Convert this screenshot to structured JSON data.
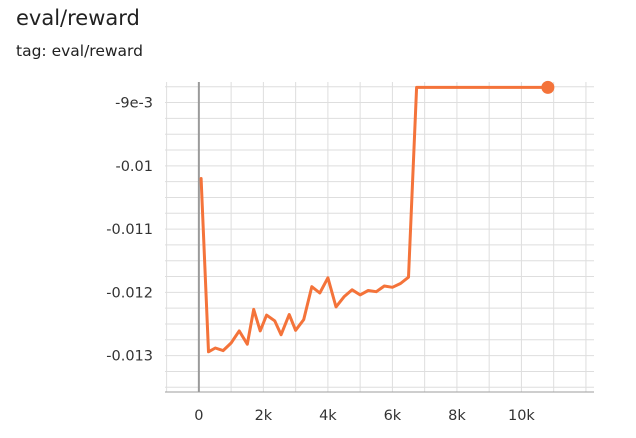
{
  "header": {
    "title": "eval/reward",
    "tag": "tag: eval/reward"
  },
  "chart_data": {
    "type": "line",
    "title": "eval/reward",
    "subtitle": "tag: eval/reward",
    "xlabel": "",
    "ylabel": "",
    "xlim": [
      -1050,
      12250
    ],
    "ylim": [
      -0.013575,
      -0.008675
    ],
    "x_ticks": [
      0,
      2000,
      4000,
      6000,
      8000,
      10000
    ],
    "x_tick_labels": [
      "0",
      "2k",
      "4k",
      "6k",
      "8k",
      "10k"
    ],
    "y_ticks": [
      -0.009,
      -0.01,
      -0.011,
      -0.012,
      -0.013
    ],
    "y_tick_labels": [
      "-9e-3",
      "-0.01",
      "-0.011",
      "-0.012",
      "-0.013"
    ],
    "grid": true,
    "color": "#f4733a",
    "series": [
      {
        "name": "",
        "x": [
          70,
          300,
          510,
          750,
          1000,
          1250,
          1500,
          1700,
          1900,
          2100,
          2350,
          2550,
          2800,
          3000,
          3250,
          3500,
          3750,
          4000,
          4250,
          4500,
          4750,
          5000,
          5250,
          5500,
          5750,
          6000,
          6250,
          6500,
          6750,
          7000,
          7250,
          7500,
          8000,
          9000,
          10000,
          10820
        ],
        "y": [
          -0.0102,
          -0.01294,
          -0.01288,
          -0.01292,
          -0.0128,
          -0.01261,
          -0.01282,
          -0.01227,
          -0.01261,
          -0.01236,
          -0.01245,
          -0.01267,
          -0.01235,
          -0.0126,
          -0.01243,
          -0.01191,
          -0.01201,
          -0.01177,
          -0.01223,
          -0.01207,
          -0.01196,
          -0.01204,
          -0.01197,
          -0.01199,
          -0.0119,
          -0.01192,
          -0.01186,
          -0.01176,
          -0.00876,
          -0.00876,
          -0.00876,
          -0.00876,
          -0.00876,
          -0.00876,
          -0.00876,
          -0.00876
        ]
      }
    ]
  }
}
